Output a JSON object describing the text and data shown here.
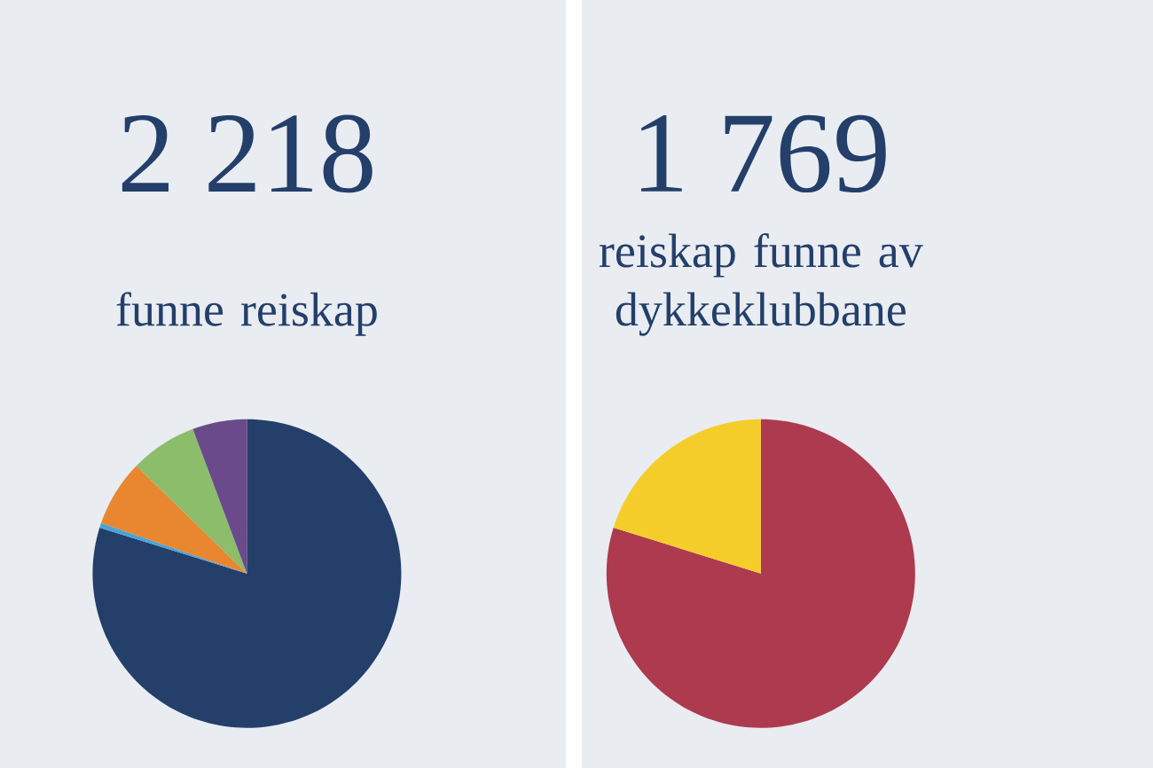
{
  "chart_data": [
    {
      "type": "pie",
      "title": "2 218",
      "subtitle": "funne reiskap",
      "categories": [
        null,
        null,
        null,
        null,
        null
      ],
      "values": [
        79.8,
        0.5,
        7,
        7,
        5.7
      ],
      "colors": [
        "#233f6a",
        "#4aa3d8",
        "#e8872f",
        "#8bbd6a",
        "#6b4a8c"
      ]
    },
    {
      "type": "pie",
      "title": "1 769",
      "subtitle": "reiskap funne av dykkeklubbane",
      "categories": [
        null,
        null
      ],
      "values": [
        79.8,
        20.2
      ],
      "colors": [
        "#ad3a4f",
        "#f5cd2a"
      ]
    }
  ]
}
